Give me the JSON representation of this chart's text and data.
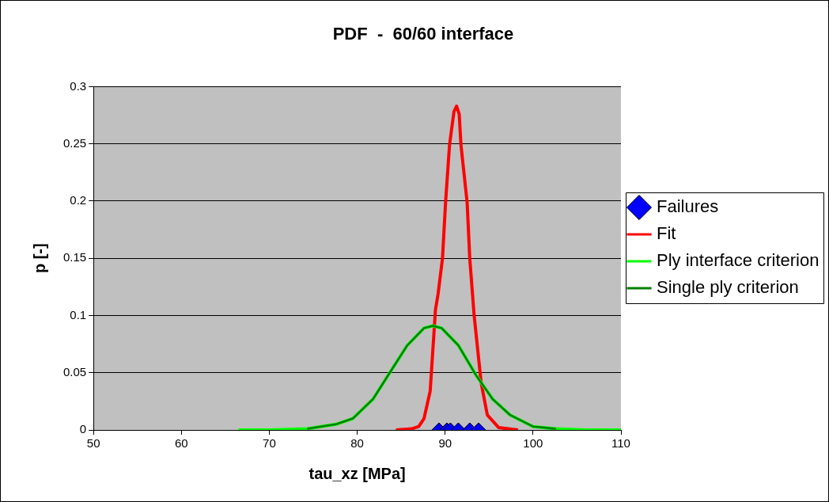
{
  "chart_data": {
    "type": "line",
    "title": "PDF  -  60/60 interface",
    "xlabel": "tau_xz [MPa]",
    "ylabel": "p [-]",
    "xlim": [
      50,
      110
    ],
    "xticks": [
      50,
      60,
      70,
      80,
      90,
      100,
      110
    ],
    "ylim": [
      0,
      0.3
    ],
    "yticks": [
      0,
      0.05,
      0.1,
      0.15,
      0.2,
      0.25,
      0.3
    ],
    "grid": "y",
    "legend": "right",
    "series": [
      {
        "name": "Failures",
        "type": "scatter",
        "marker": "diamond",
        "color": "#0000ff",
        "x": [
          89.3,
          90.2,
          90.6,
          91.5,
          92.8,
          93.8
        ],
        "values": [
          0,
          0,
          0,
          0,
          0,
          0
        ]
      },
      {
        "name": "Fit",
        "type": "line",
        "marker": "none",
        "color": "#ff0000",
        "x": [
          84.4,
          86.2,
          87.0,
          87.6,
          88.3,
          88.9,
          89.2,
          89.7,
          90.05,
          90.5,
          91.0,
          91.3,
          91.6,
          91.8,
          92.5,
          92.8,
          93.3,
          94.1,
          94.8,
          96.1,
          98.3
        ],
        "values": [
          0,
          0.001,
          0.003,
          0.01,
          0.034,
          0.105,
          0.119,
          0.15,
          0.199,
          0.249,
          0.278,
          0.283,
          0.276,
          0.249,
          0.199,
          0.15,
          0.1,
          0.041,
          0.013,
          0.002,
          0
        ]
      },
      {
        "name": "Ply interface criterion",
        "type": "line",
        "marker": "none",
        "color": "#00ff00",
        "x": [
          66.5,
          70,
          74.3,
          77.6,
          79.5,
          81.8,
          83.7,
          85.7,
          87.6,
          88.6,
          89.6,
          91.5,
          93.5,
          95.4,
          97.4,
          100,
          102.6,
          106,
          110
        ],
        "values": [
          0,
          0,
          0.001,
          0.005,
          0.01,
          0.027,
          0.05,
          0.074,
          0.089,
          0.091,
          0.089,
          0.074,
          0.048,
          0.027,
          0.013,
          0.003,
          0.001,
          0,
          0
        ]
      },
      {
        "name": "Single ply criterion",
        "type": "line",
        "marker": "none",
        "color": "#008000",
        "x": [
          74.3,
          77.6,
          79.5,
          81.8,
          83.7,
          85.7,
          87.6,
          88.6,
          89.6,
          91.5,
          93.5,
          95.4,
          97.4,
          100,
          102.6
        ],
        "values": [
          0.001,
          0.005,
          0.01,
          0.027,
          0.05,
          0.074,
          0.089,
          0.091,
          0.089,
          0.074,
          0.048,
          0.027,
          0.013,
          0.003,
          0.001
        ]
      }
    ]
  }
}
